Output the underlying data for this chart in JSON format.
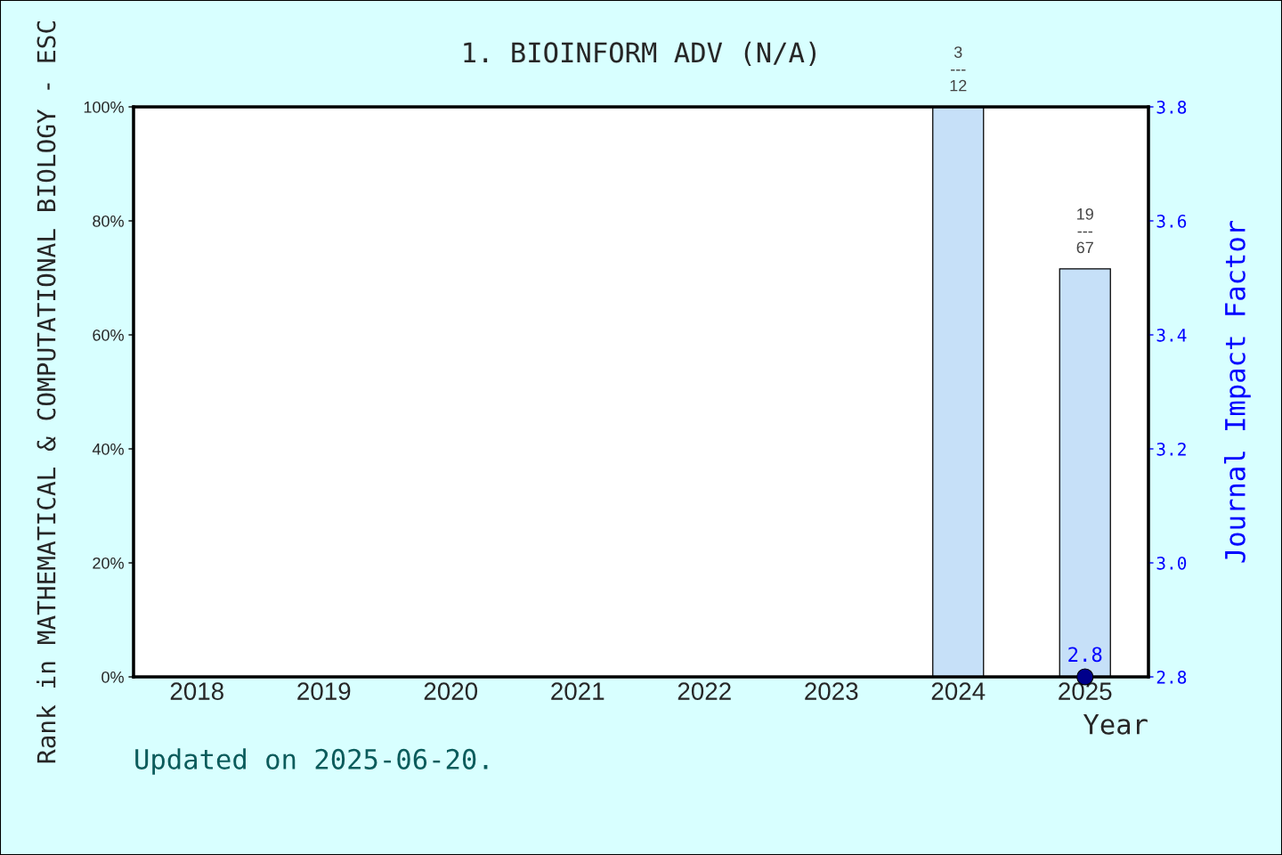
{
  "chart_data": {
    "type": "bar",
    "title": "1. BIOINFORM ADV (N/A)",
    "xlabel": "Year",
    "ylabel": "Rank in MATHEMATICAL & COMPUTATIONAL BIOLOGY - ESC",
    "y2label": "Journal Impact Factor",
    "annotations": [
      {
        "text": "3\n---\n12",
        "x": "2024",
        "y": 100
      },
      {
        "text": "19\n---\n67",
        "x": "2025",
        "y": 71.6
      },
      "Updated on 2025-06-20."
    ],
    "categories": [
      "2018",
      "2019",
      "2020",
      "2021",
      "2022",
      "2023",
      "2024",
      "2025"
    ],
    "series": [
      {
        "color": "#c6e0f8",
        "values": [
          null,
          null,
          null,
          null,
          null,
          null,
          100,
          71.6
        ]
      },
      {
        "type": "scatter",
        "axis": "y2",
        "color": "#00008b",
        "marker": "circle",
        "values": [
          null,
          null,
          null,
          null,
          null,
          null,
          null,
          2.8
        ],
        "value_labels": [
          null,
          null,
          null,
          null,
          null,
          null,
          null,
          "2.8"
        ]
      }
    ],
    "ylim": [
      0,
      100
    ],
    "yticks": [
      {
        "value": 0,
        "label": "0%"
      },
      {
        "value": 20,
        "label": "20%"
      },
      {
        "value": 40,
        "label": "40%"
      },
      {
        "value": 60,
        "label": "60%"
      },
      {
        "value": 80,
        "label": "80%"
      },
      {
        "value": 100,
        "label": "100%"
      }
    ],
    "y2lim": [
      2.8,
      3.8
    ],
    "y2ticks": [
      2.8,
      {
        "value": 3.0,
        "label": "3.0"
      },
      3.2,
      3.4,
      3.6,
      3.8
    ],
    "grid": false
  }
}
